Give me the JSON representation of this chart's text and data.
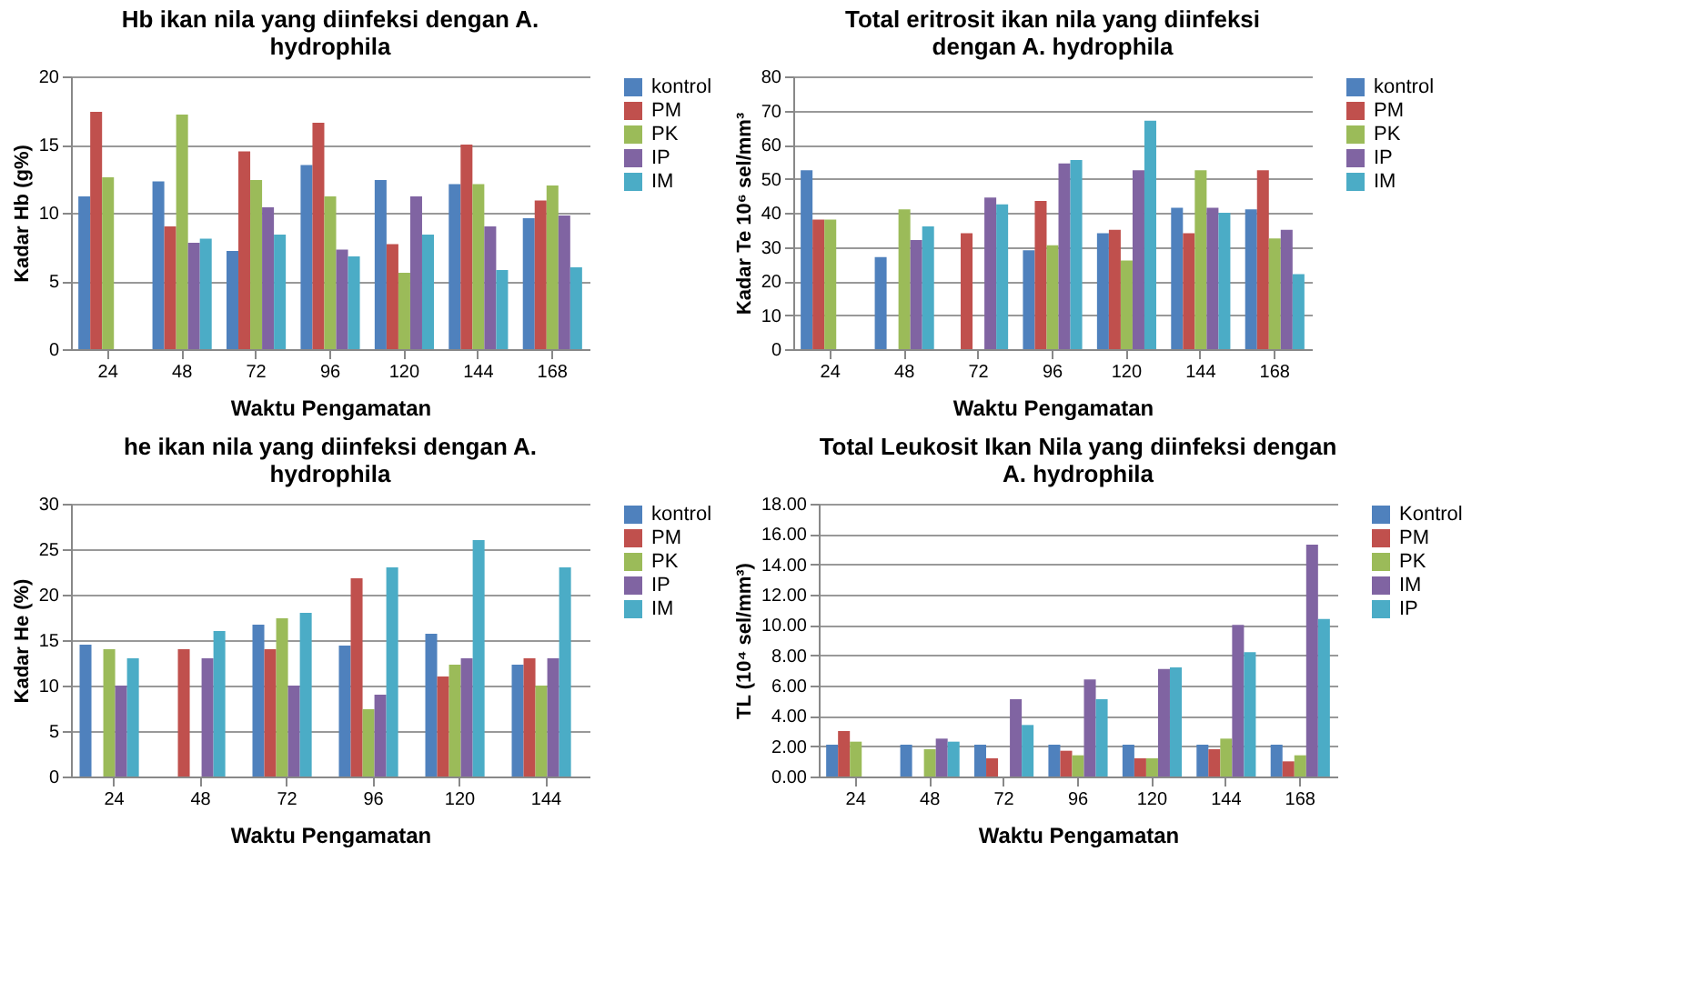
{
  "chart_data": [
    {
      "type": "bar",
      "title": "Hb ikan nila yang diinfeksi dengan A. hydrophila",
      "xlabel": "Waktu Pengamatan",
      "ylabel": "Kadar Hb (g%)",
      "categories": [
        "24",
        "48",
        "72",
        "96",
        "120",
        "144",
        "168"
      ],
      "ylim": [
        0,
        20
      ],
      "yticks": [
        0,
        5,
        10,
        15,
        20
      ],
      "grid": "y",
      "legend": "right",
      "series": [
        {
          "name": "kontrol",
          "color": "#4f81bd",
          "values": [
            11.2,
            12.3,
            7.2,
            13.5,
            12.4,
            12.1,
            9.6
          ]
        },
        {
          "name": "PM",
          "color": "#c0504d",
          "values": [
            17.4,
            9.0,
            14.5,
            16.6,
            7.7,
            15.0,
            10.9
          ]
        },
        {
          "name": "PK",
          "color": "#9bbb59",
          "values": [
            12.6,
            17.2,
            12.4,
            11.2,
            5.6,
            12.1,
            12.0
          ]
        },
        {
          "name": "IP",
          "color": "#8064a2",
          "values": [
            null,
            7.8,
            10.4,
            7.3,
            11.2,
            9.0,
            9.8
          ]
        },
        {
          "name": "IM",
          "color": "#4bacc6",
          "values": [
            null,
            8.1,
            8.4,
            6.8,
            8.4,
            5.8,
            6.0
          ]
        }
      ]
    },
    {
      "type": "bar",
      "title": "Total eritrosit ikan nila yang diinfeksi dengan A. hydrophila",
      "xlabel": "Waktu Pengamatan",
      "ylabel": "Kadar Te 10⁶ sel/mm³",
      "categories": [
        "24",
        "48",
        "72",
        "96",
        "120",
        "144",
        "168"
      ],
      "ylim": [
        0,
        80
      ],
      "yticks": [
        0,
        10,
        20,
        30,
        40,
        50,
        60,
        70,
        80
      ],
      "grid": "y",
      "legend": "right",
      "series": [
        {
          "name": "kontrol",
          "color": "#4f81bd",
          "values": [
            52.5,
            27,
            null,
            29,
            34,
            41.5,
            41
          ]
        },
        {
          "name": "PM",
          "color": "#c0504d",
          "values": [
            38,
            null,
            34,
            43.5,
            35,
            34,
            52.5
          ]
        },
        {
          "name": "PK",
          "color": "#9bbb59",
          "values": [
            38,
            41,
            null,
            30.5,
            26,
            52.5,
            32.5
          ]
        },
        {
          "name": "IP",
          "color": "#8064a2",
          "values": [
            null,
            32,
            44.5,
            54.5,
            52.5,
            41.5,
            35
          ]
        },
        {
          "name": "IM",
          "color": "#4bacc6",
          "values": [
            null,
            36,
            42.5,
            55.5,
            67,
            40,
            22
          ]
        }
      ]
    },
    {
      "type": "bar",
      "title": "he ikan nila yang diinfeksi dengan A. hydrophila",
      "xlabel": "Waktu Pengamatan",
      "ylabel": "Kadar He (%)",
      "categories": [
        "24",
        "48",
        "72",
        "96",
        "120",
        "144"
      ],
      "ylim": [
        0,
        30
      ],
      "yticks": [
        0,
        5,
        10,
        15,
        20,
        25,
        30
      ],
      "grid": "y",
      "legend": "right",
      "series": [
        {
          "name": "kontrol",
          "color": "#4f81bd",
          "values": [
            14.5,
            null,
            16.7,
            14.4,
            15.7,
            12.3
          ]
        },
        {
          "name": "PM",
          "color": "#c0504d",
          "values": [
            null,
            14,
            14,
            21.8,
            11,
            13
          ]
        },
        {
          "name": "PK",
          "color": "#9bbb59",
          "values": [
            14,
            null,
            17.4,
            7.4,
            12.3,
            10
          ]
        },
        {
          "name": "IP",
          "color": "#8064a2",
          "values": [
            10,
            13,
            10,
            9,
            13,
            13
          ]
        },
        {
          "name": "IM",
          "color": "#4bacc6",
          "values": [
            13,
            16,
            18,
            23,
            26,
            23
          ]
        }
      ]
    },
    {
      "type": "bar",
      "title": "Total Leukosit Ikan Nila yang diinfeksi dengan A. hydrophila",
      "xlabel": "Waktu Pengamatan",
      "ylabel": "TL (10⁴ sel/mm³)",
      "categories": [
        "24",
        "48",
        "72",
        "96",
        "120",
        "144",
        "168"
      ],
      "ylim": [
        0,
        18
      ],
      "yticks": [
        {
          "value": 0,
          "label": "0.00"
        },
        {
          "value": 2,
          "label": "2.00"
        },
        {
          "value": 4,
          "label": "4.00"
        },
        {
          "value": 6,
          "label": "6.00"
        },
        {
          "value": 8,
          "label": "8.00"
        },
        {
          "value": 10,
          "label": "10.00"
        },
        {
          "value": 12,
          "label": "12.00"
        },
        {
          "value": 14,
          "label": "14.00"
        },
        {
          "value": 16,
          "label": "16.00"
        },
        {
          "value": 18,
          "label": "18.00"
        }
      ],
      "grid": "y",
      "legend": "right",
      "series": [
        {
          "name": "Kontrol",
          "color": "#4f81bd",
          "values": [
            2.1,
            2.1,
            2.1,
            2.1,
            2.1,
            2.1,
            2.1
          ]
        },
        {
          "name": "PM",
          "color": "#c0504d",
          "values": [
            3.0,
            null,
            1.2,
            1.7,
            1.2,
            1.8,
            1.0
          ]
        },
        {
          "name": "PK",
          "color": "#9bbb59",
          "values": [
            2.3,
            1.8,
            null,
            1.4,
            1.2,
            2.5,
            1.4
          ]
        },
        {
          "name": "IM",
          "color": "#8064a2",
          "values": [
            null,
            2.5,
            5.1,
            6.4,
            7.1,
            10.0,
            15.3
          ]
        },
        {
          "name": "IP",
          "color": "#4bacc6",
          "values": [
            null,
            2.3,
            3.4,
            5.1,
            7.2,
            8.2,
            10.4
          ]
        }
      ]
    }
  ]
}
